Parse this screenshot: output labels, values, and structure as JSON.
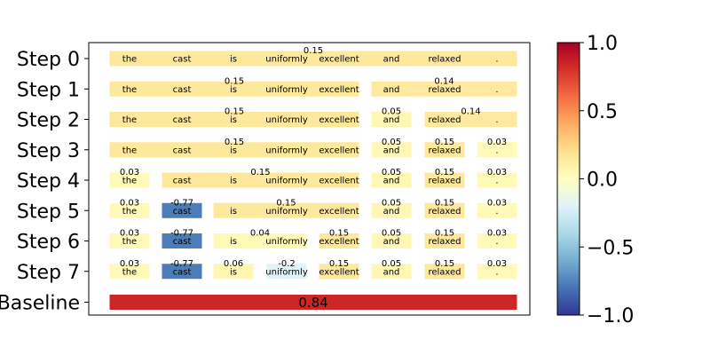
{
  "chart_data": {
    "type": "heatmap",
    "title": "",
    "tokens": [
      "the",
      "cast",
      "is",
      "uniformly",
      "excellent",
      "and",
      "relaxed",
      "."
    ],
    "row_labels": [
      "Step 0",
      "Step 1",
      "Step 2",
      "Step 3",
      "Step 4",
      "Step 5",
      "Step 6",
      "Step 7",
      "Baseline"
    ],
    "steps": [
      {
        "label": "Step 0",
        "segments": [
          {
            "tokens": [
              0,
              1,
              2,
              3,
              4,
              5,
              6,
              7
            ],
            "value": 0.15,
            "value_text": "0.15"
          }
        ]
      },
      {
        "label": "Step 1",
        "segments": [
          {
            "tokens": [
              0,
              1,
              2,
              3,
              4
            ],
            "value": 0.15,
            "value_text": "0.15"
          },
          {
            "tokens": [
              5,
              6,
              7
            ],
            "value": 0.14,
            "value_text": "0.14"
          }
        ]
      },
      {
        "label": "Step 2",
        "segments": [
          {
            "tokens": [
              0,
              1,
              2,
              3,
              4
            ],
            "value": 0.15,
            "value_text": "0.15"
          },
          {
            "tokens": [
              5
            ],
            "value": 0.05,
            "value_text": "0.05"
          },
          {
            "tokens": [
              6,
              7
            ],
            "value": 0.14,
            "value_text": "0.14"
          }
        ]
      },
      {
        "label": "Step 3",
        "segments": [
          {
            "tokens": [
              0,
              1,
              2,
              3,
              4
            ],
            "value": 0.15,
            "value_text": "0.15"
          },
          {
            "tokens": [
              5
            ],
            "value": 0.05,
            "value_text": "0.05"
          },
          {
            "tokens": [
              6
            ],
            "value": 0.15,
            "value_text": "0.15"
          },
          {
            "tokens": [
              7
            ],
            "value": 0.03,
            "value_text": "0.03"
          }
        ]
      },
      {
        "label": "Step 4",
        "segments": [
          {
            "tokens": [
              0
            ],
            "value": 0.03,
            "value_text": "0.03"
          },
          {
            "tokens": [
              1,
              2,
              3,
              4
            ],
            "value": 0.15,
            "value_text": "0.15"
          },
          {
            "tokens": [
              5
            ],
            "value": 0.05,
            "value_text": "0.05"
          },
          {
            "tokens": [
              6
            ],
            "value": 0.15,
            "value_text": "0.15"
          },
          {
            "tokens": [
              7
            ],
            "value": 0.03,
            "value_text": "0.03"
          }
        ]
      },
      {
        "label": "Step 5",
        "segments": [
          {
            "tokens": [
              0
            ],
            "value": 0.03,
            "value_text": "0.03"
          },
          {
            "tokens": [
              1
            ],
            "value": -0.77,
            "value_text": "-0.77"
          },
          {
            "tokens": [
              2,
              3,
              4
            ],
            "value": 0.15,
            "value_text": "0.15"
          },
          {
            "tokens": [
              5
            ],
            "value": 0.05,
            "value_text": "0.05"
          },
          {
            "tokens": [
              6
            ],
            "value": 0.15,
            "value_text": "0.15"
          },
          {
            "tokens": [
              7
            ],
            "value": 0.03,
            "value_text": "0.03"
          }
        ]
      },
      {
        "label": "Step 6",
        "segments": [
          {
            "tokens": [
              0
            ],
            "value": 0.03,
            "value_text": "0.03"
          },
          {
            "tokens": [
              1
            ],
            "value": -0.77,
            "value_text": "-0.77"
          },
          {
            "tokens": [
              2,
              3
            ],
            "value": 0.04,
            "value_text": "0.04"
          },
          {
            "tokens": [
              4
            ],
            "value": 0.15,
            "value_text": "0.15"
          },
          {
            "tokens": [
              5
            ],
            "value": 0.05,
            "value_text": "0.05"
          },
          {
            "tokens": [
              6
            ],
            "value": 0.15,
            "value_text": "0.15"
          },
          {
            "tokens": [
              7
            ],
            "value": 0.03,
            "value_text": "0.03"
          }
        ]
      },
      {
        "label": "Step 7",
        "segments": [
          {
            "tokens": [
              0
            ],
            "value": 0.03,
            "value_text": "0.03"
          },
          {
            "tokens": [
              1
            ],
            "value": -0.77,
            "value_text": "-0.77"
          },
          {
            "tokens": [
              2
            ],
            "value": 0.06,
            "value_text": "0.06"
          },
          {
            "tokens": [
              3
            ],
            "value": -0.2,
            "value_text": "-0.2"
          },
          {
            "tokens": [
              4
            ],
            "value": 0.15,
            "value_text": "0.15"
          },
          {
            "tokens": [
              5
            ],
            "value": 0.05,
            "value_text": "0.05"
          },
          {
            "tokens": [
              6
            ],
            "value": 0.15,
            "value_text": "0.15"
          },
          {
            "tokens": [
              7
            ],
            "value": 0.03,
            "value_text": "0.03"
          }
        ]
      }
    ],
    "baseline": {
      "label": "Baseline",
      "value": 0.84,
      "value_text": "0.84"
    },
    "colormap": "RdYlBu_r",
    "colorbar": {
      "range": [
        -1.0,
        1.0
      ],
      "ticks": [
        "1.0",
        "0.5",
        "0.0",
        "−0.5",
        "−1.0"
      ],
      "tick_values": [
        1.0,
        0.5,
        0.0,
        -0.5,
        -1.0
      ]
    },
    "grid": false
  }
}
